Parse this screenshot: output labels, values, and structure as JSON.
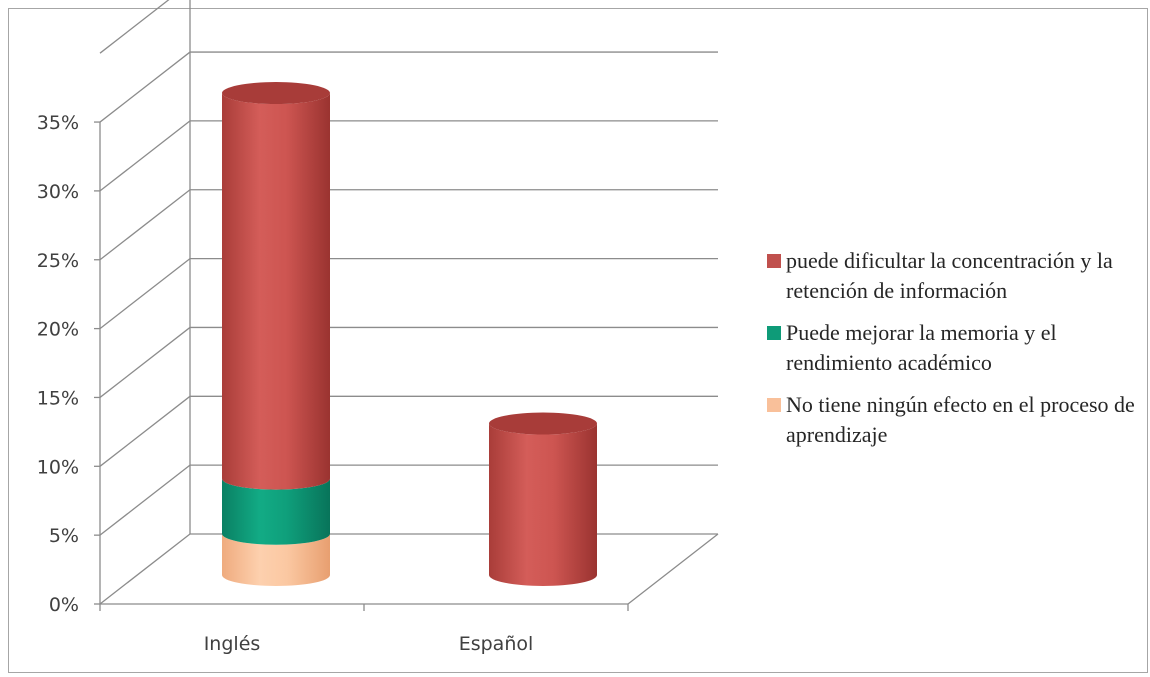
{
  "chart_data": {
    "type": "bar",
    "stacked": true,
    "three_d": true,
    "shape": "cylinder",
    "categories": [
      "Inglés",
      "Español"
    ],
    "series": [
      {
        "name": "No tiene ningún efecto en el proceso de aprendizaje",
        "values": [
          3,
          0
        ],
        "color": "#f9c09a"
      },
      {
        "name": "Puede mejorar la memoria y el rendimiento académico",
        "values": [
          4,
          0
        ],
        "color": "#0e9b78"
      },
      {
        "name": "puede dificultar la concentración y la retención de información",
        "values": [
          28,
          11
        ],
        "color": "#c0504d"
      }
    ],
    "y_ticks": [
      "0%",
      "5%",
      "10%",
      "15%",
      "20%",
      "25%",
      "30%",
      "35%"
    ],
    "ylim": [
      0,
      35
    ],
    "y_unit": "%",
    "grid": true,
    "legend_position": "right",
    "legend_order": [
      2,
      1,
      0
    ]
  }
}
